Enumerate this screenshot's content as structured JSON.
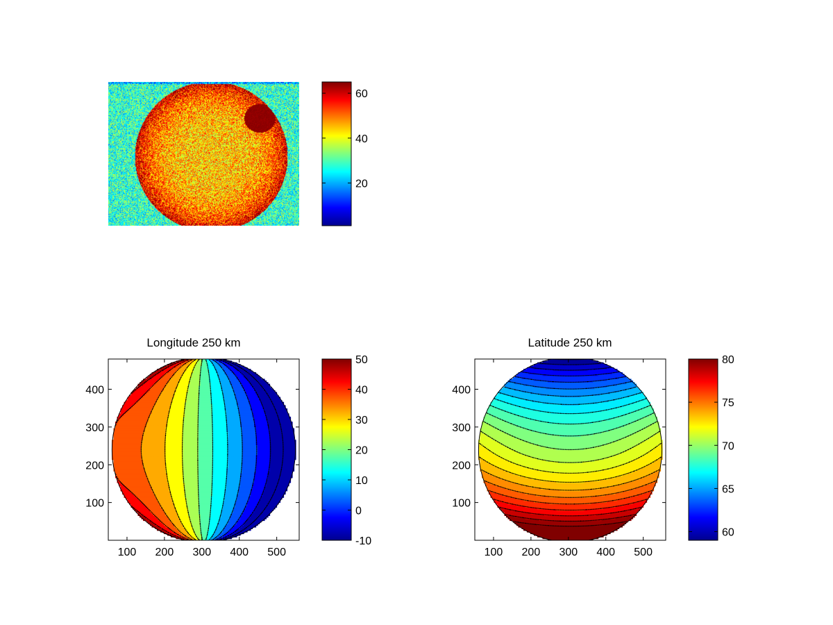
{
  "colormap": "jet",
  "chart_data": [
    {
      "type": "heatmap",
      "title": "",
      "description_data": {
        "disk_center_x": 0.5,
        "disk_center_y": 0.5,
        "colorbar_range": [
          1,
          65
        ],
        "background_level": 28,
        "disk_level": 45,
        "limb_level": 62,
        "dark_spot_level": 64
      },
      "colorbar": {
        "min": 1,
        "max": 65,
        "ticks": [
          20,
          40,
          60
        ]
      }
    },
    {
      "type": "contourf",
      "title": "Longitude 250 km",
      "xlim": [
        50,
        560
      ],
      "ylim": [
        0,
        480
      ],
      "xticks": [
        100,
        200,
        300,
        400,
        500
      ],
      "yticks": [
        100,
        200,
        300,
        400
      ],
      "disk": {
        "center": [
          305,
          240
        ],
        "radius": 245
      },
      "levels": [
        -10,
        -5,
        0,
        5,
        10,
        15,
        20,
        25,
        30,
        35,
        40,
        45,
        50
      ],
      "colorbar": {
        "min": -10,
        "max": 50,
        "ticks": [
          50,
          40,
          30,
          20,
          10,
          0,
          -10
        ]
      }
    },
    {
      "type": "contourf",
      "title": "Latitude 250 km",
      "xlim": [
        50,
        560
      ],
      "ylim": [
        0,
        480
      ],
      "xticks": [
        100,
        200,
        300,
        400,
        500
      ],
      "yticks": [
        100,
        200,
        300,
        400
      ],
      "disk": {
        "center": [
          305,
          240
        ],
        "radius": 245
      },
      "levels": [
        59,
        60,
        61,
        62,
        63,
        64,
        65,
        66,
        67,
        68,
        69,
        70,
        71,
        72,
        73,
        74,
        75,
        76,
        77,
        78,
        79,
        80
      ],
      "colorbar": {
        "min": 59,
        "max": 80,
        "ticks": [
          80,
          75,
          70,
          65,
          60
        ]
      }
    }
  ]
}
